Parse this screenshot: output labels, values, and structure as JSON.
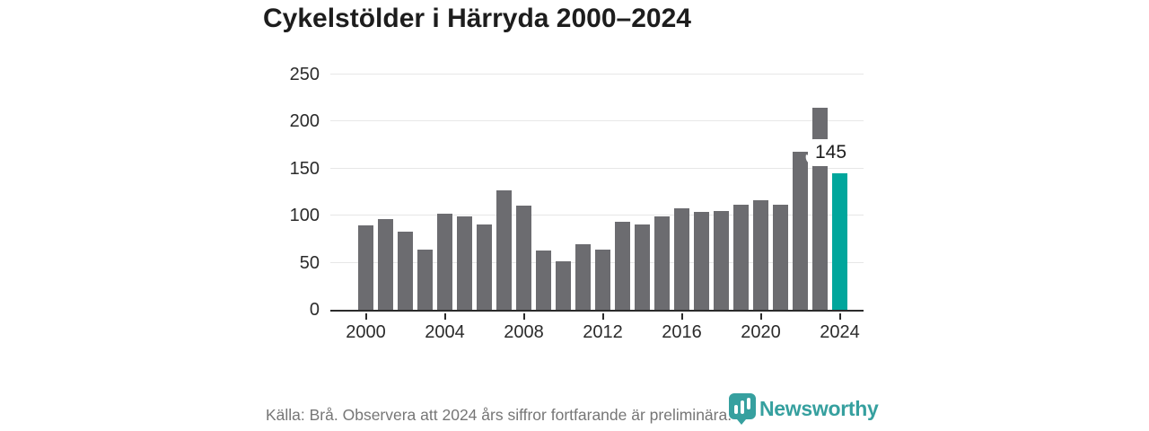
{
  "title": "Cykelstölder i Härryda 2000–2024",
  "chart_data": {
    "type": "bar",
    "title": "Cykelstölder i Härryda 2000–2024",
    "categories": [
      2000,
      2001,
      2002,
      2003,
      2004,
      2005,
      2006,
      2007,
      2008,
      2009,
      2010,
      2011,
      2012,
      2013,
      2014,
      2015,
      2016,
      2017,
      2018,
      2019,
      2020,
      2021,
      2022,
      2023,
      2024
    ],
    "values": [
      90,
      96,
      83,
      64,
      102,
      99,
      91,
      127,
      111,
      63,
      52,
      70,
      64,
      94,
      91,
      99,
      108,
      104,
      105,
      112,
      116,
      112,
      168,
      215,
      145
    ],
    "ylim": [
      0,
      250
    ],
    "yticks": [
      0,
      50,
      100,
      150,
      200,
      250
    ],
    "xticks": [
      2000,
      2004,
      2008,
      2012,
      2016,
      2020,
      2024
    ],
    "grid": true,
    "legend_position": "none",
    "xlabel": "",
    "ylabel": "",
    "bar_color": "#6c6c70",
    "highlight_index": 24,
    "highlight_color": "#00a69c",
    "highlight_label": "145"
  },
  "footer": {
    "source": "Källa: Brå. Observera att 2024 års siffror fortfarande är preliminära.",
    "brand": "Newsworthy",
    "brand_color": "#36a09f"
  }
}
